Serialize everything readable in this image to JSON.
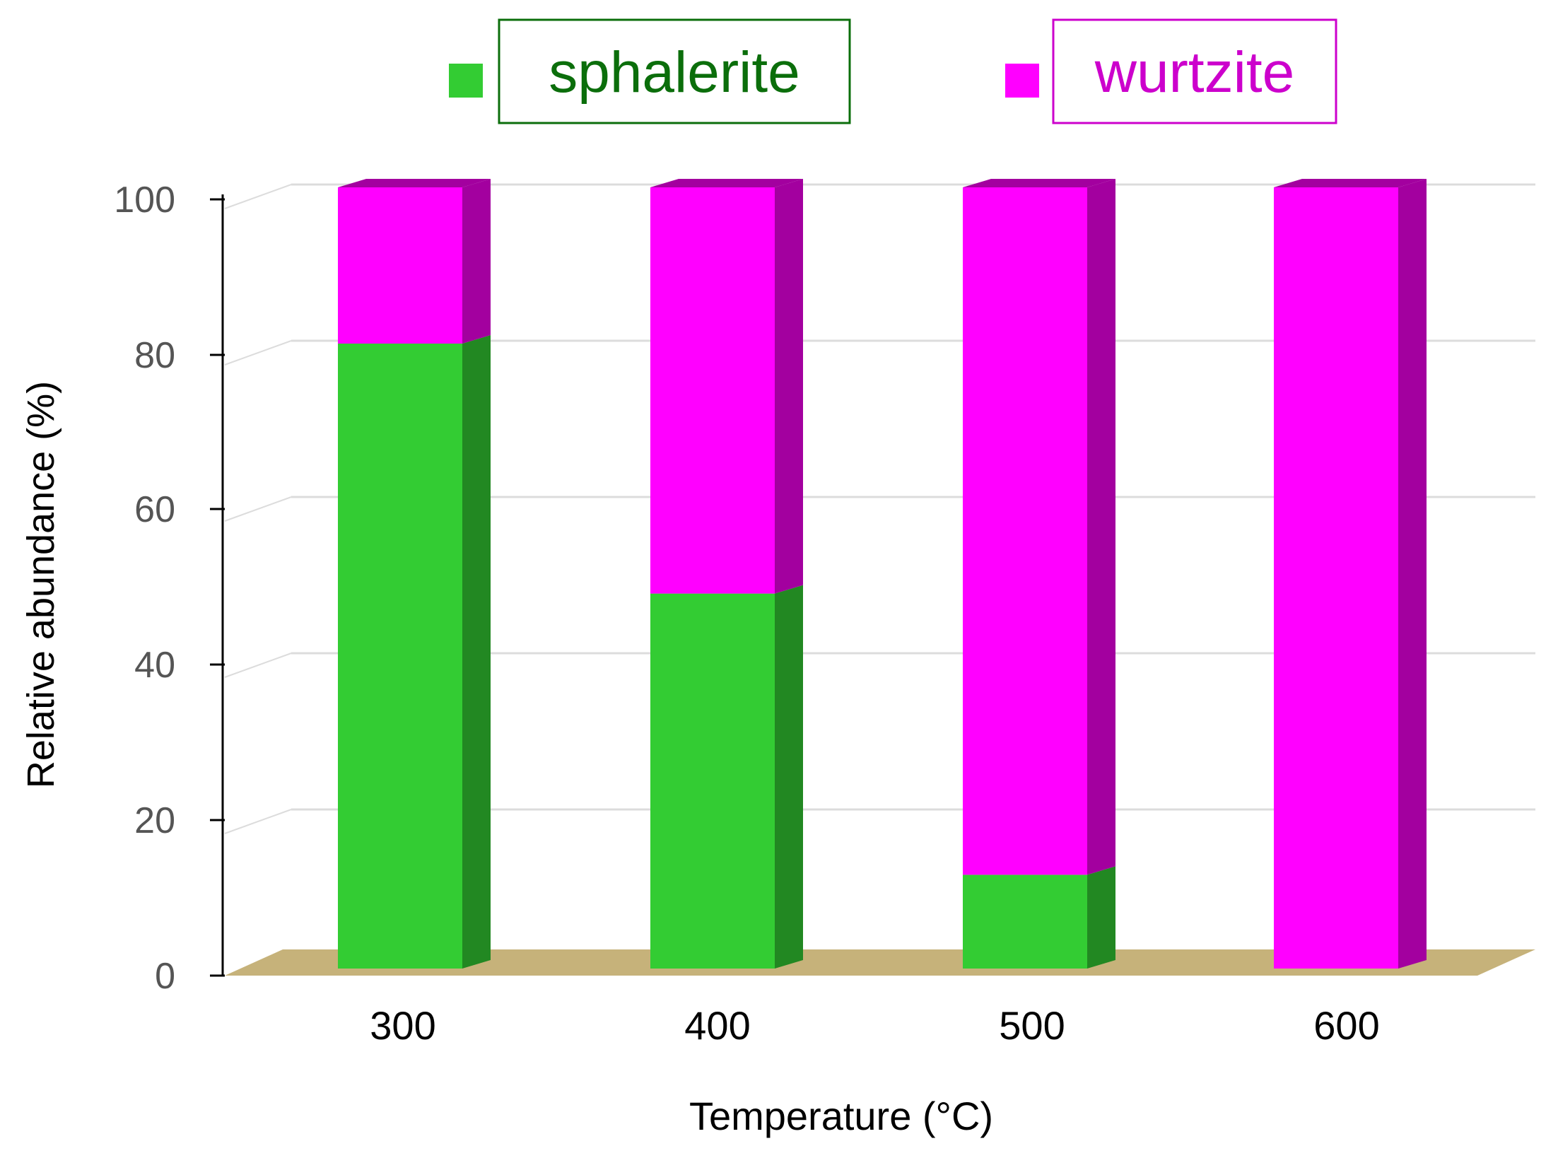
{
  "chart_data": {
    "type": "bar",
    "stacked": true,
    "three_d": true,
    "categories": [
      "300",
      "400",
      "500",
      "600"
    ],
    "series": [
      {
        "name": "sphalerite",
        "values": [
          80,
          48,
          12,
          0
        ],
        "color": "#33cc33",
        "side_color": "#228822",
        "text_color": "#0b6e0b"
      },
      {
        "name": "wurtzite",
        "values": [
          20,
          52,
          88,
          100
        ],
        "color": "#ff00ff",
        "side_color": "#a3009f",
        "text_color": "#cc00cc"
      }
    ],
    "xlabel": "Temperature (°C)",
    "ylabel": "Relative abundance (%)",
    "ylim": [
      0,
      100
    ],
    "yticks": [
      0,
      20,
      40,
      60,
      80,
      100
    ],
    "grid": true,
    "legend": "top",
    "floor_color": "#c6b27a"
  }
}
